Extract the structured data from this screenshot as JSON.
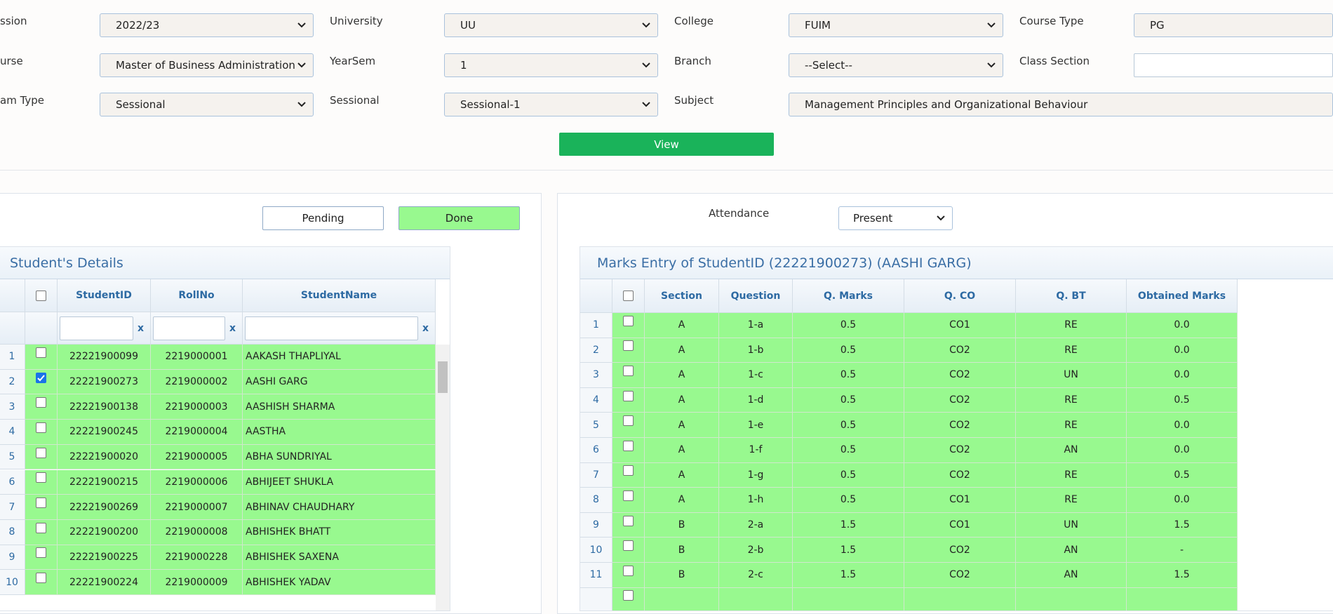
{
  "filters": [
    {
      "label": "ssion",
      "value": "2022/23"
    },
    {
      "label": "University",
      "value": "UU"
    },
    {
      "label": "College",
      "value": "FUIM"
    },
    {
      "label": "Course Type",
      "value": "PG"
    },
    {
      "label": "urse",
      "value": "Master of Business Administration"
    },
    {
      "label": "YearSem",
      "value": "1"
    },
    {
      "label": "Branch",
      "value": "--Select--"
    },
    {
      "label": "Class Section"
    },
    {
      "label": "am Type",
      "value": "Sessional"
    },
    {
      "label": "Sessional",
      "value": "Sessional-1"
    },
    {
      "label": "Subject",
      "value": "Management Principles and Organizational Behaviour"
    }
  ],
  "view_button": "View",
  "status_buttons": [
    "Pending",
    "Done"
  ],
  "students": {
    "title": "Student's Details",
    "headers": [
      "StudentID",
      "RollNo",
      "StudentName"
    ],
    "clear": [
      "x",
      "x",
      "x"
    ],
    "rows": [
      {
        "no": 1,
        "id": "22221900099",
        "roll": "2219000001",
        "name": "AAKASH THAPLIYAL"
      },
      {
        "no": 2,
        "id": "22221900273",
        "roll": "2219000002",
        "name": "AASHI GARG",
        "checked": true
      },
      {
        "no": 3,
        "id": "22221900138",
        "roll": "2219000003",
        "name": "AASHISH SHARMA"
      },
      {
        "no": 4,
        "id": "22221900245",
        "roll": "2219000004",
        "name": "AASTHA"
      },
      {
        "no": 5,
        "id": "22221900020",
        "roll": "2219000005",
        "name": "ABHA SUNDRIYAL"
      },
      {
        "no": 6,
        "id": "22221900215",
        "roll": "2219000006",
        "name": "ABHIJEET SHUKLA"
      },
      {
        "no": 7,
        "id": "22221900269",
        "roll": "2219000007",
        "name": "ABHINAV CHAUDHARY"
      },
      {
        "no": 8,
        "id": "22221900200",
        "roll": "2219000008",
        "name": "ABHISHEK BHATT"
      },
      {
        "no": 9,
        "id": "22221900225",
        "roll": "2219000228",
        "name": "ABHISHEK SAXENA"
      },
      {
        "no": 10,
        "id": "22221900224",
        "roll": "2219000009",
        "name": "ABHISHEK YADAV"
      }
    ]
  },
  "attendance": {
    "label": "Attendance",
    "value": "Present"
  },
  "marks": {
    "title": "Marks Entry of StudentID (22221900273) (AASHI GARG)",
    "headers": [
      "Section",
      "Question",
      "Q. Marks",
      "Q. CO",
      "Q. BT",
      "Obtained Marks"
    ],
    "rows": [
      [
        1,
        "A",
        "1-a",
        "0.5",
        "CO1",
        "RE",
        "0.0"
      ],
      [
        2,
        "A",
        "1-b",
        "0.5",
        "CO2",
        "RE",
        "0.0"
      ],
      [
        3,
        "A",
        "1-c",
        "0.5",
        "CO2",
        "UN",
        "0.0"
      ],
      [
        4,
        "A",
        "1-d",
        "0.5",
        "CO2",
        "RE",
        "0.5"
      ],
      [
        5,
        "A",
        "1-e",
        "0.5",
        "CO2",
        "RE",
        "0.0"
      ],
      [
        6,
        "A",
        "1-f",
        "0.5",
        "CO2",
        "AN",
        "0.0"
      ],
      [
        7,
        "A",
        "1-g",
        "0.5",
        "CO2",
        "RE",
        "0.5"
      ],
      [
        8,
        "A",
        "1-h",
        "0.5",
        "CO1",
        "RE",
        "0.0"
      ],
      [
        9,
        "B",
        "2-a",
        "1.5",
        "CO1",
        "UN",
        "1.5"
      ],
      [
        10,
        "B",
        "2-b",
        "1.5",
        "CO2",
        "AN",
        "-"
      ],
      [
        11,
        "B",
        "2-c",
        "1.5",
        "CO2",
        "AN",
        "1.5"
      ]
    ]
  }
}
